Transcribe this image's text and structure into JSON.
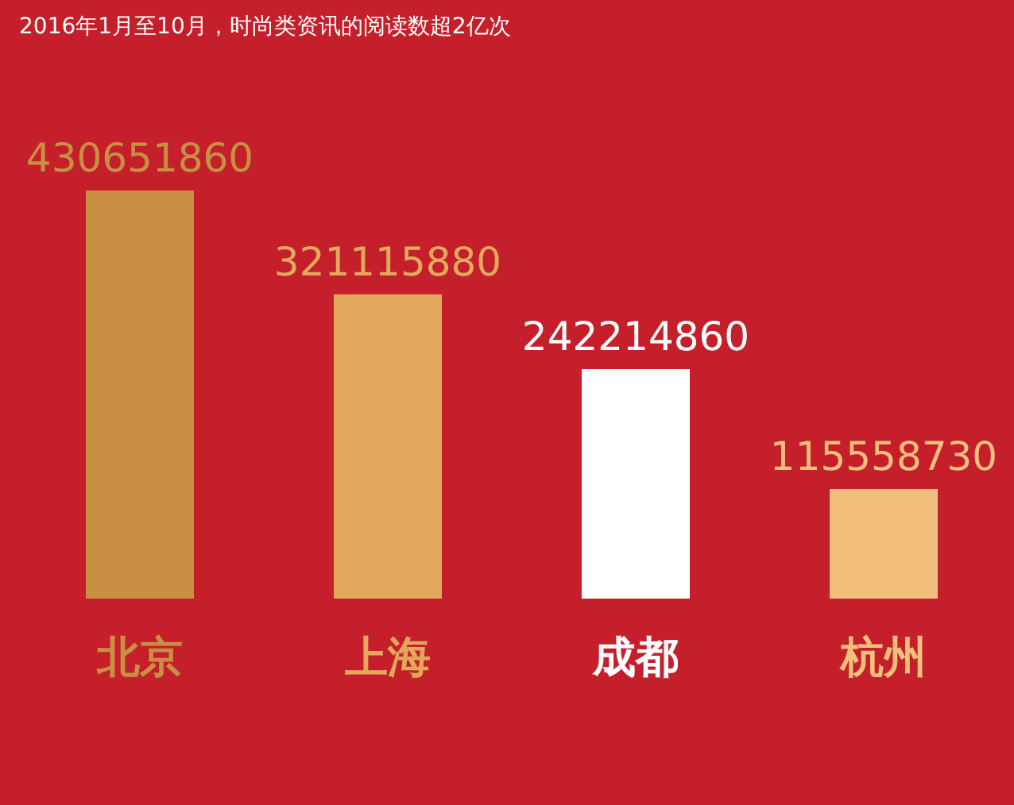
{
  "chart_data": {
    "type": "bar",
    "title": "2016年1月至10月，时尚类资讯的阅读数超2亿次",
    "categories": [
      "北京",
      "上海",
      "成都",
      "杭州"
    ],
    "values": [
      430651860,
      321115880,
      242214860,
      115558730
    ],
    "colors": [
      "#c98f42",
      "#e2a95c",
      "#ffffff",
      "#f2c07c"
    ],
    "data_labels": true,
    "tick_labels": "x"
  }
}
